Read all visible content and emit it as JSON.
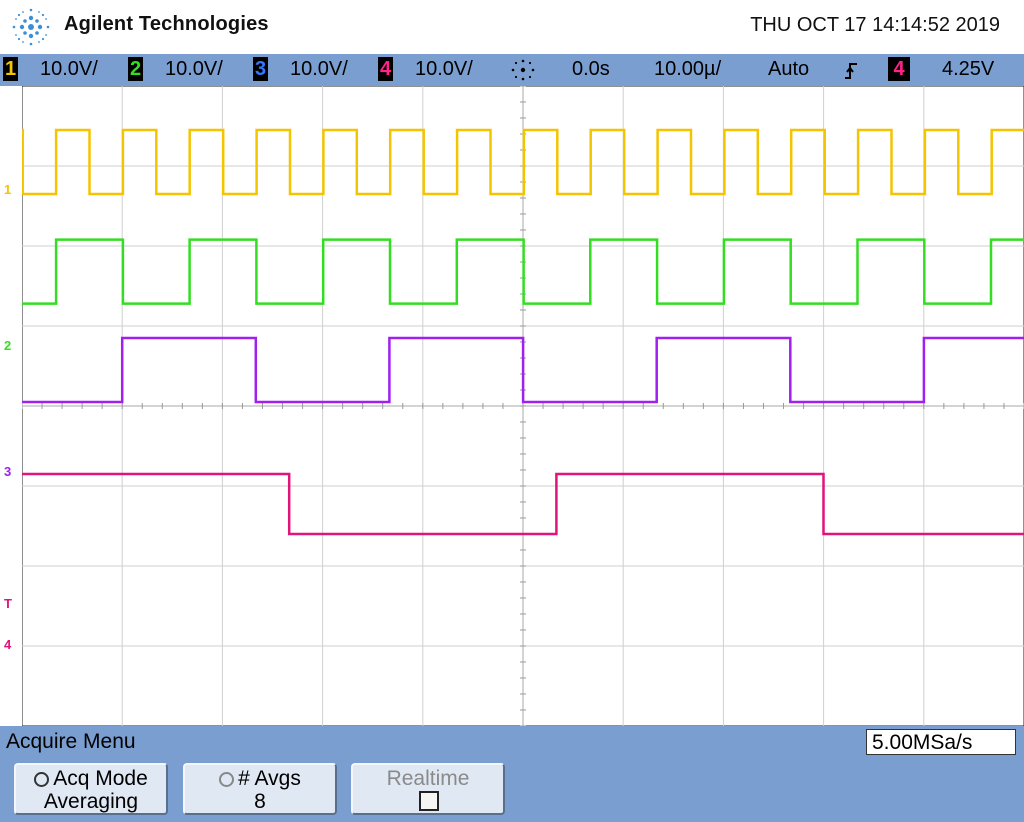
{
  "header": {
    "brand": "Agilent Technologies",
    "datetime": "THU OCT 17 14:14:52 2019"
  },
  "status_bar": {
    "channels": [
      {
        "number": "1",
        "scale": "10.0V/",
        "color": "#f5c400"
      },
      {
        "number": "2",
        "scale": "10.0V/",
        "color": "#33dd22"
      },
      {
        "number": "3",
        "scale": "10.0V/",
        "color": "#3377ff"
      },
      {
        "number": "4",
        "scale": "10.0V/",
        "color": "#ff2288"
      }
    ],
    "trigger_icon": "sun-burst-icon",
    "delay": "0.0s",
    "timebase": "10.00µ/",
    "trigger_mode": "Auto",
    "trigger_slope_icon": "rising-edge-icon",
    "trigger_source": "4",
    "trigger_level": "4.25V"
  },
  "markers": [
    {
      "label": "1",
      "color": "#f5c400"
    },
    {
      "label": "2",
      "color": "#33dd22"
    },
    {
      "label": "3",
      "color": "#a020f0"
    },
    {
      "label": "T",
      "color": "#e0147a"
    },
    {
      "label": "4",
      "color": "#e0147a"
    }
  ],
  "waveforms": [
    {
      "channel": "1",
      "color": "#f5c400",
      "period_div": 0.667,
      "duty": 0.5,
      "start_high": 0.34,
      "level_div_high": 0.55,
      "level_div_low": 1.35
    },
    {
      "channel": "2",
      "color": "#33dd22",
      "period_div": 1.333,
      "duty": 0.5,
      "start_high": 0.34,
      "level_div_high": 1.92,
      "level_div_low": 2.72
    },
    {
      "channel": "3",
      "color": "#a020f0",
      "period_div": 2.667,
      "duty": 0.5,
      "start_high": 1.0,
      "level_div_high": 3.15,
      "level_div_low": 3.95
    },
    {
      "channel": "4",
      "color": "#e0147a",
      "period_div": 5.333,
      "duty": 0.5,
      "start_high": 0.0,
      "level_div_high": 4.85,
      "level_div_low": 5.6
    }
  ],
  "acquire_menu": {
    "title": "Acquire Menu",
    "sample_rate": "5.00MSa/s",
    "softkeys": [
      {
        "icon": "cycle-icon",
        "label": "Acq Mode",
        "value": "Averaging"
      },
      {
        "icon": "cycle-icon",
        "label": "# Avgs",
        "value": "8"
      },
      {
        "label": "Realtime",
        "checked": false
      }
    ]
  }
}
